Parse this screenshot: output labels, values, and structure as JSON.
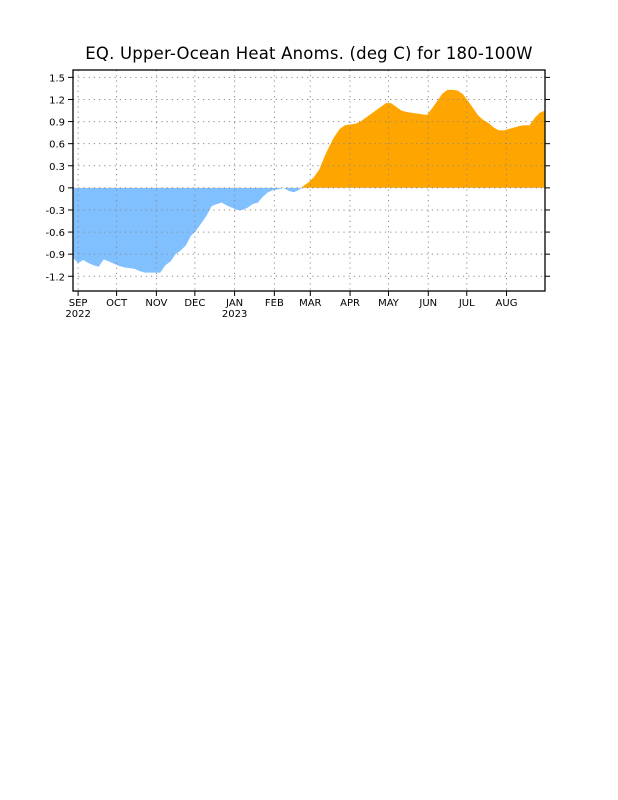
{
  "chart_data": {
    "type": "area",
    "title": "EQ. Upper-Ocean Heat Anoms. (deg C) for 180-100W",
    "xlabel": "",
    "ylabel": "",
    "ylim": [
      -1.4,
      1.6
    ],
    "xlim": [
      "2022-08-28",
      "2023-08-31"
    ],
    "yticks": [
      "1.5",
      "1.2",
      "0.9",
      "0.6",
      "0.3",
      "0",
      "-0.3",
      "-0.6",
      "-0.9",
      "-1.2"
    ],
    "xticks": [
      {
        "month": "SEP",
        "year": "2022",
        "date": "2022-09-01"
      },
      {
        "month": "OCT",
        "year": "",
        "date": "2022-10-01"
      },
      {
        "month": "NOV",
        "year": "",
        "date": "2022-11-01"
      },
      {
        "month": "DEC",
        "year": "",
        "date": "2022-12-01"
      },
      {
        "month": "JAN",
        "year": "2023",
        "date": "2023-01-01"
      },
      {
        "month": "FEB",
        "year": "",
        "date": "2023-02-01"
      },
      {
        "month": "MAR",
        "year": "",
        "date": "2023-03-01"
      },
      {
        "month": "APR",
        "year": "",
        "date": "2023-04-01"
      },
      {
        "month": "MAY",
        "year": "",
        "date": "2023-05-01"
      },
      {
        "month": "JUN",
        "year": "",
        "date": "2023-06-01"
      },
      {
        "month": "JUL",
        "year": "",
        "date": "2023-07-01"
      },
      {
        "month": "AUG",
        "year": "",
        "date": "2023-08-01"
      }
    ],
    "grid": true,
    "fill_colors": {
      "positive": "#ffa500",
      "negative": "#80c0ff"
    },
    "series": [
      {
        "x": [
          "2022-08-28",
          "2022-09-01",
          "2022-09-05",
          "2022-09-09",
          "2022-09-13",
          "2022-09-17",
          "2022-09-21",
          "2022-09-25",
          "2022-09-29",
          "2022-10-03",
          "2022-10-07",
          "2022-10-11",
          "2022-10-15",
          "2022-10-19",
          "2022-10-23",
          "2022-10-27",
          "2022-10-31",
          "2022-11-04",
          "2022-11-08",
          "2022-11-12",
          "2022-11-16",
          "2022-11-20",
          "2022-11-24",
          "2022-11-28",
          "2022-12-02",
          "2022-12-06",
          "2022-12-10",
          "2022-12-14",
          "2022-12-18",
          "2022-12-22",
          "2022-12-26",
          "2022-12-30",
          "2023-01-03",
          "2023-01-07",
          "2023-01-11",
          "2023-01-15",
          "2023-01-19",
          "2023-01-23",
          "2023-01-27",
          "2023-01-31",
          "2023-02-04",
          "2023-02-08",
          "2023-02-12",
          "2023-02-16",
          "2023-02-20",
          "2023-02-24",
          "2023-02-28",
          "2023-03-04",
          "2023-03-08",
          "2023-03-12",
          "2023-03-16",
          "2023-03-20",
          "2023-03-24",
          "2023-03-28",
          "2023-04-01",
          "2023-04-05",
          "2023-04-09",
          "2023-04-13",
          "2023-04-17",
          "2023-04-21",
          "2023-04-25",
          "2023-04-29",
          "2023-05-03",
          "2023-05-07",
          "2023-05-11",
          "2023-05-15",
          "2023-05-19",
          "2023-05-23",
          "2023-05-27",
          "2023-05-31",
          "2023-06-04",
          "2023-06-08",
          "2023-06-12",
          "2023-06-16",
          "2023-06-20",
          "2023-06-24",
          "2023-06-28",
          "2023-07-02",
          "2023-07-06",
          "2023-07-10",
          "2023-07-14",
          "2023-07-18",
          "2023-07-22",
          "2023-07-26",
          "2023-07-30",
          "2023-08-03",
          "2023-08-07",
          "2023-08-11",
          "2023-08-15",
          "2023-08-19",
          "2023-08-23",
          "2023-08-27",
          "2023-08-31"
        ],
        "y": [
          -0.95,
          -1.02,
          -0.98,
          -1.02,
          -1.05,
          -1.07,
          -0.97,
          -1.0,
          -1.03,
          -1.06,
          -1.08,
          -1.09,
          -1.1,
          -1.13,
          -1.15,
          -1.15,
          -1.15,
          -1.15,
          -1.05,
          -1.0,
          -0.9,
          -0.85,
          -0.78,
          -0.65,
          -0.58,
          -0.48,
          -0.38,
          -0.25,
          -0.22,
          -0.2,
          -0.24,
          -0.27,
          -0.3,
          -0.3,
          -0.27,
          -0.22,
          -0.2,
          -0.12,
          -0.06,
          -0.03,
          -0.02,
          0.0,
          -0.04,
          -0.06,
          -0.03,
          0.03,
          0.08,
          0.15,
          0.25,
          0.42,
          0.57,
          0.7,
          0.8,
          0.85,
          0.86,
          0.87,
          0.9,
          0.95,
          1.0,
          1.05,
          1.1,
          1.15,
          1.15,
          1.1,
          1.05,
          1.03,
          1.02,
          1.01,
          1.0,
          0.99,
          1.08,
          1.18,
          1.28,
          1.33,
          1.33,
          1.32,
          1.27,
          1.18,
          1.08,
          0.98,
          0.92,
          0.88,
          0.82,
          0.78,
          0.78,
          0.8,
          0.82,
          0.84,
          0.85,
          0.85,
          0.95,
          1.02,
          1.05
        ]
      }
    ]
  }
}
